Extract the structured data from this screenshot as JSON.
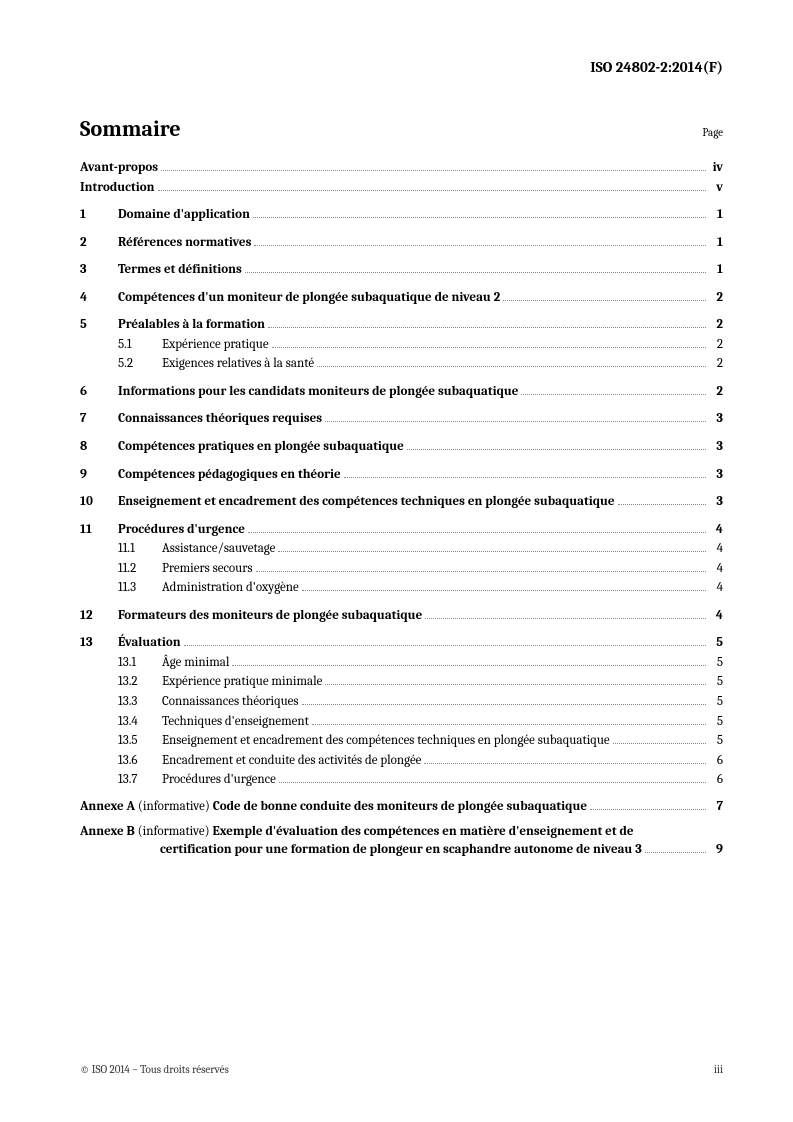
{
  "doc_id": "ISO 24802-2:2014(F)",
  "title": "Sommaire",
  "page_label": "Page",
  "front": [
    {
      "label": "Avant-propos",
      "page": "iv"
    },
    {
      "label": "Introduction",
      "page": "v"
    }
  ],
  "sections": [
    {
      "num": "1",
      "title": "Domaine d'application",
      "page": "1",
      "subs": []
    },
    {
      "num": "2",
      "title": "Références normatives",
      "page": "1",
      "subs": []
    },
    {
      "num": "3",
      "title": "Termes et définitions",
      "page": "1",
      "subs": []
    },
    {
      "num": "4",
      "title": "Compétences d'un moniteur de plongée subaquatique de niveau 2",
      "page": "2",
      "subs": []
    },
    {
      "num": "5",
      "title": "Préalables à la formation",
      "page": "2",
      "subs": [
        {
          "num": "5.1",
          "title": "Expérience pratique",
          "page": "2"
        },
        {
          "num": "5.2",
          "title": "Exigences relatives à la santé",
          "page": "2"
        }
      ]
    },
    {
      "num": "6",
      "title": "Informations pour les candidats moniteurs de plongée subaquatique",
      "page": "2",
      "subs": []
    },
    {
      "num": "7",
      "title": "Connaissances théoriques requises",
      "page": "3",
      "subs": []
    },
    {
      "num": "8",
      "title": "Compétences pratiques en plongée subaquatique",
      "page": "3",
      "subs": []
    },
    {
      "num": "9",
      "title": "Compétences pédagogiques en théorie",
      "page": "3",
      "subs": []
    },
    {
      "num": "10",
      "title": "Enseignement et encadrement des compétences techniques en plongée subaquatique",
      "page": "3",
      "subs": []
    },
    {
      "num": "11",
      "title": "Procédures d'urgence",
      "page": "4",
      "subs": [
        {
          "num": "11.1",
          "title": "Assistance/sauvetage",
          "page": "4"
        },
        {
          "num": "11.2",
          "title": "Premiers secours",
          "page": "4"
        },
        {
          "num": "11.3",
          "title": "Administration d'oxygène",
          "page": "4"
        }
      ]
    },
    {
      "num": "12",
      "title": "Formateurs des moniteurs de plongée subaquatique",
      "page": "4",
      "subs": []
    },
    {
      "num": "13",
      "title": "Évaluation",
      "page": "5",
      "subs": [
        {
          "num": "13.1",
          "title": "Âge minimal",
          "page": "5"
        },
        {
          "num": "13.2",
          "title": "Expérience pratique minimale",
          "page": "5"
        },
        {
          "num": "13.3",
          "title": "Connaissances théoriques",
          "page": "5"
        },
        {
          "num": "13.4",
          "title": "Techniques d'enseignement",
          "page": "5"
        },
        {
          "num": "13.5",
          "title": "Enseignement et encadrement des compétences techniques en plongée subaquatique",
          "page": "5"
        },
        {
          "num": "13.6",
          "title": "Encadrement et conduite des activités de plongée",
          "page": "6"
        },
        {
          "num": "13.7",
          "title": "Procédures d'urgence",
          "page": "6"
        }
      ]
    }
  ],
  "annexes": [
    {
      "label": "Annexe A",
      "qualifier": "(informative)",
      "title_l1": "Code de bonne conduite des moniteurs de plongée subaquatique",
      "title_l2": "",
      "page": "7"
    },
    {
      "label": "Annexe B",
      "qualifier": "(informative)",
      "title_l1": "Exemple d'évaluation des compétences en matière d'enseignement et de",
      "title_l2": "certification pour une formation de plongeur en scaphandre autonome de niveau 3",
      "page": "9"
    }
  ],
  "footer_left": "© ISO 2014 – Tous droits réservés",
  "footer_right": "iii"
}
